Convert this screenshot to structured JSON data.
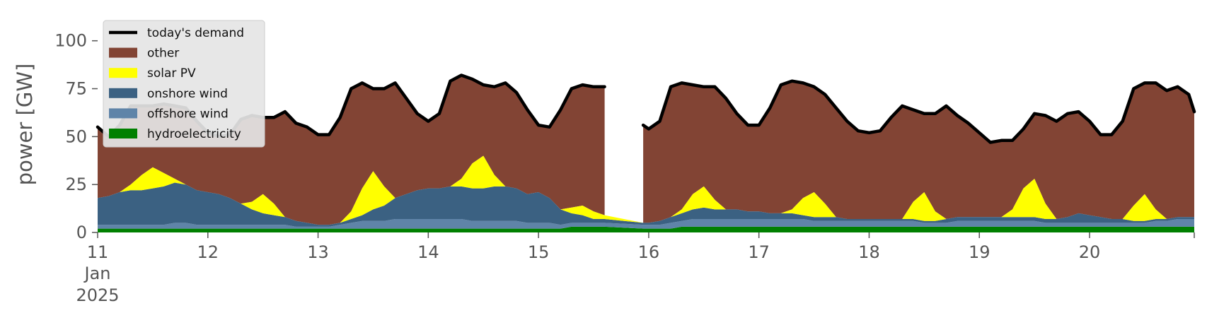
{
  "chart_data": {
    "type": "area",
    "ylabel": "power [GW]",
    "ylim": [
      0,
      115
    ],
    "yticks": [
      0,
      25,
      50,
      75,
      100
    ],
    "xlim": [
      11,
      20.95
    ],
    "xticks": [
      {
        "x": 11,
        "label": "11",
        "sub": [
          "Jan",
          "2025"
        ]
      },
      {
        "x": 12,
        "label": "12",
        "sub": []
      },
      {
        "x": 13,
        "label": "13",
        "sub": []
      },
      {
        "x": 14,
        "label": "14",
        "sub": []
      },
      {
        "x": 15,
        "label": "15",
        "sub": []
      },
      {
        "x": 16,
        "label": "16",
        "sub": []
      },
      {
        "x": 17,
        "label": "17",
        "sub": []
      },
      {
        "x": 18,
        "label": "18",
        "sub": []
      },
      {
        "x": 19,
        "label": "19",
        "sub": []
      },
      {
        "x": 20,
        "label": "20",
        "sub": []
      }
    ],
    "grid": false,
    "legend_position": "top-left",
    "gap": [
      15.6,
      15.95
    ],
    "x": [
      11,
      11.1,
      11.2,
      11.3,
      11.4,
      11.5,
      11.6,
      11.7,
      11.8,
      11.9,
      12,
      12.1,
      12.2,
      12.3,
      12.4,
      12.5,
      12.6,
      12.7,
      12.8,
      12.9,
      13,
      13.1,
      13.2,
      13.3,
      13.4,
      13.5,
      13.6,
      13.7,
      13.8,
      13.9,
      14,
      14.1,
      14.2,
      14.3,
      14.4,
      14.5,
      14.6,
      14.7,
      14.8,
      14.9,
      15,
      15.1,
      15.2,
      15.3,
      15.4,
      15.5,
      15.6,
      15.95,
      16,
      16.1,
      16.2,
      16.3,
      16.4,
      16.5,
      16.6,
      16.7,
      16.8,
      16.9,
      17,
      17.1,
      17.2,
      17.3,
      17.4,
      17.5,
      17.6,
      17.7,
      17.8,
      17.9,
      18,
      18.1,
      18.2,
      18.3,
      18.4,
      18.5,
      18.6,
      18.7,
      18.8,
      18.9,
      19,
      19.1,
      19.2,
      19.3,
      19.4,
      19.5,
      19.6,
      19.7,
      19.8,
      19.9,
      20,
      20.1,
      20.2,
      20.3,
      20.4,
      20.5,
      20.6,
      20.7,
      20.8,
      20.9,
      20.95
    ],
    "demand": [
      55,
      50,
      56,
      66,
      66,
      66,
      67,
      66,
      65,
      58,
      52,
      50,
      51,
      59,
      61,
      60,
      60,
      63,
      57,
      55,
      51,
      51,
      60,
      75,
      78,
      75,
      75,
      78,
      70,
      62,
      58,
      62,
      79,
      82,
      80,
      77,
      76,
      78,
      73,
      64,
      56,
      55,
      64,
      75,
      77,
      76,
      76,
      56,
      54,
      58,
      76,
      78,
      77,
      76,
      76,
      70,
      62,
      56,
      56,
      65,
      77,
      79,
      78,
      76,
      72,
      65,
      58,
      53,
      52,
      53,
      60,
      66,
      64,
      62,
      62,
      66,
      61,
      57,
      52,
      47,
      48,
      48,
      54,
      62,
      61,
      58,
      62,
      63,
      58,
      51,
      51,
      58,
      75,
      78,
      78,
      74,
      76,
      72,
      63
    ],
    "series": [
      {
        "name": "hydroelectricity",
        "color": "#008000",
        "values": [
          2,
          2,
          2,
          2,
          2,
          2,
          2,
          2,
          2,
          2,
          2,
          2,
          2,
          2,
          2,
          2,
          2,
          2,
          2,
          2,
          2,
          2,
          2,
          2,
          2,
          2,
          2,
          2,
          2,
          2,
          2,
          2,
          2,
          2,
          2,
          2,
          2,
          2,
          2,
          2,
          2,
          2,
          2,
          3,
          3,
          3,
          3,
          2,
          2,
          2,
          2,
          3,
          3,
          3,
          3,
          3,
          3,
          3,
          3,
          3,
          3,
          3,
          3,
          3,
          3,
          3,
          3,
          3,
          3,
          3,
          3,
          3,
          3,
          3,
          3,
          3,
          3,
          3,
          3,
          3,
          3,
          3,
          3,
          3,
          3,
          3,
          3,
          3,
          3,
          3,
          3,
          3,
          3,
          3,
          3,
          3,
          3,
          3,
          3
        ]
      },
      {
        "name": "offshore wind",
        "color": "#5f84a8",
        "values": [
          2,
          2,
          2,
          2,
          2,
          2,
          2,
          3,
          3,
          2,
          2,
          2,
          2,
          2,
          2,
          2,
          2,
          2,
          1,
          1,
          1,
          1,
          2,
          3,
          4,
          4,
          4,
          5,
          5,
          5,
          5,
          5,
          5,
          5,
          4,
          4,
          4,
          4,
          4,
          3,
          3,
          3,
          2,
          2,
          2,
          2,
          2,
          2,
          2,
          2,
          3,
          3,
          4,
          4,
          4,
          4,
          4,
          4,
          4,
          4,
          4,
          4,
          4,
          3,
          3,
          3,
          3,
          3,
          3,
          3,
          3,
          3,
          3,
          2,
          2,
          2,
          3,
          3,
          3,
          3,
          3,
          3,
          3,
          3,
          2,
          2,
          2,
          2,
          2,
          2,
          2,
          2,
          2,
          2,
          3,
          3,
          4,
          4,
          4
        ]
      },
      {
        "name": "onshore wind",
        "color": "#3b6182",
        "values": [
          14,
          15,
          17,
          18,
          18,
          19,
          20,
          21,
          20,
          18,
          17,
          16,
          14,
          11,
          8,
          6,
          5,
          4,
          3,
          2,
          1,
          1,
          1,
          2,
          3,
          6,
          8,
          11,
          13,
          15,
          16,
          16,
          17,
          17,
          17,
          17,
          18,
          18,
          17,
          15,
          16,
          13,
          8,
          5,
          4,
          2,
          2,
          1,
          1,
          2,
          3,
          4,
          5,
          6,
          5,
          5,
          5,
          4,
          4,
          3,
          3,
          3,
          2,
          2,
          2,
          2,
          1,
          1,
          1,
          1,
          1,
          1,
          1,
          1,
          1,
          2,
          2,
          2,
          2,
          2,
          2,
          2,
          2,
          2,
          2,
          2,
          3,
          5,
          4,
          3,
          2,
          2,
          1,
          1,
          1,
          1,
          1,
          1,
          1
        ]
      },
      {
        "name": "solar PV",
        "color": "#ffff00",
        "values": [
          0,
          0,
          0,
          3,
          8,
          11,
          7,
          2,
          0,
          0,
          0,
          0,
          0,
          0,
          4,
          10,
          6,
          0,
          0,
          0,
          0,
          0,
          0,
          4,
          14,
          20,
          10,
          0,
          0,
          0,
          0,
          0,
          0,
          4,
          13,
          17,
          6,
          0,
          0,
          0,
          0,
          0,
          0,
          3,
          5,
          4,
          2,
          0,
          0,
          0,
          0,
          2,
          8,
          11,
          5,
          0,
          0,
          0,
          0,
          0,
          0,
          2,
          9,
          13,
          7,
          0,
          0,
          0,
          0,
          0,
          0,
          0,
          9,
          15,
          5,
          0,
          0,
          0,
          0,
          0,
          0,
          4,
          15,
          20,
          8,
          0,
          0,
          0,
          0,
          0,
          0,
          0,
          8,
          14,
          5,
          0,
          0,
          0,
          0
        ]
      }
    ],
    "other_label": "other",
    "other_color": "#824434",
    "legend": [
      {
        "kind": "line",
        "label": "today's demand",
        "color": "#000000"
      },
      {
        "kind": "patch",
        "label": "other",
        "color": "#824434"
      },
      {
        "kind": "patch",
        "label": "solar PV",
        "color": "#ffff00"
      },
      {
        "kind": "patch",
        "label": "onshore wind",
        "color": "#3b6182"
      },
      {
        "kind": "patch",
        "label": "offshore wind",
        "color": "#5f84a8"
      },
      {
        "kind": "patch",
        "label": "hydroelectricity",
        "color": "#008000"
      }
    ]
  }
}
